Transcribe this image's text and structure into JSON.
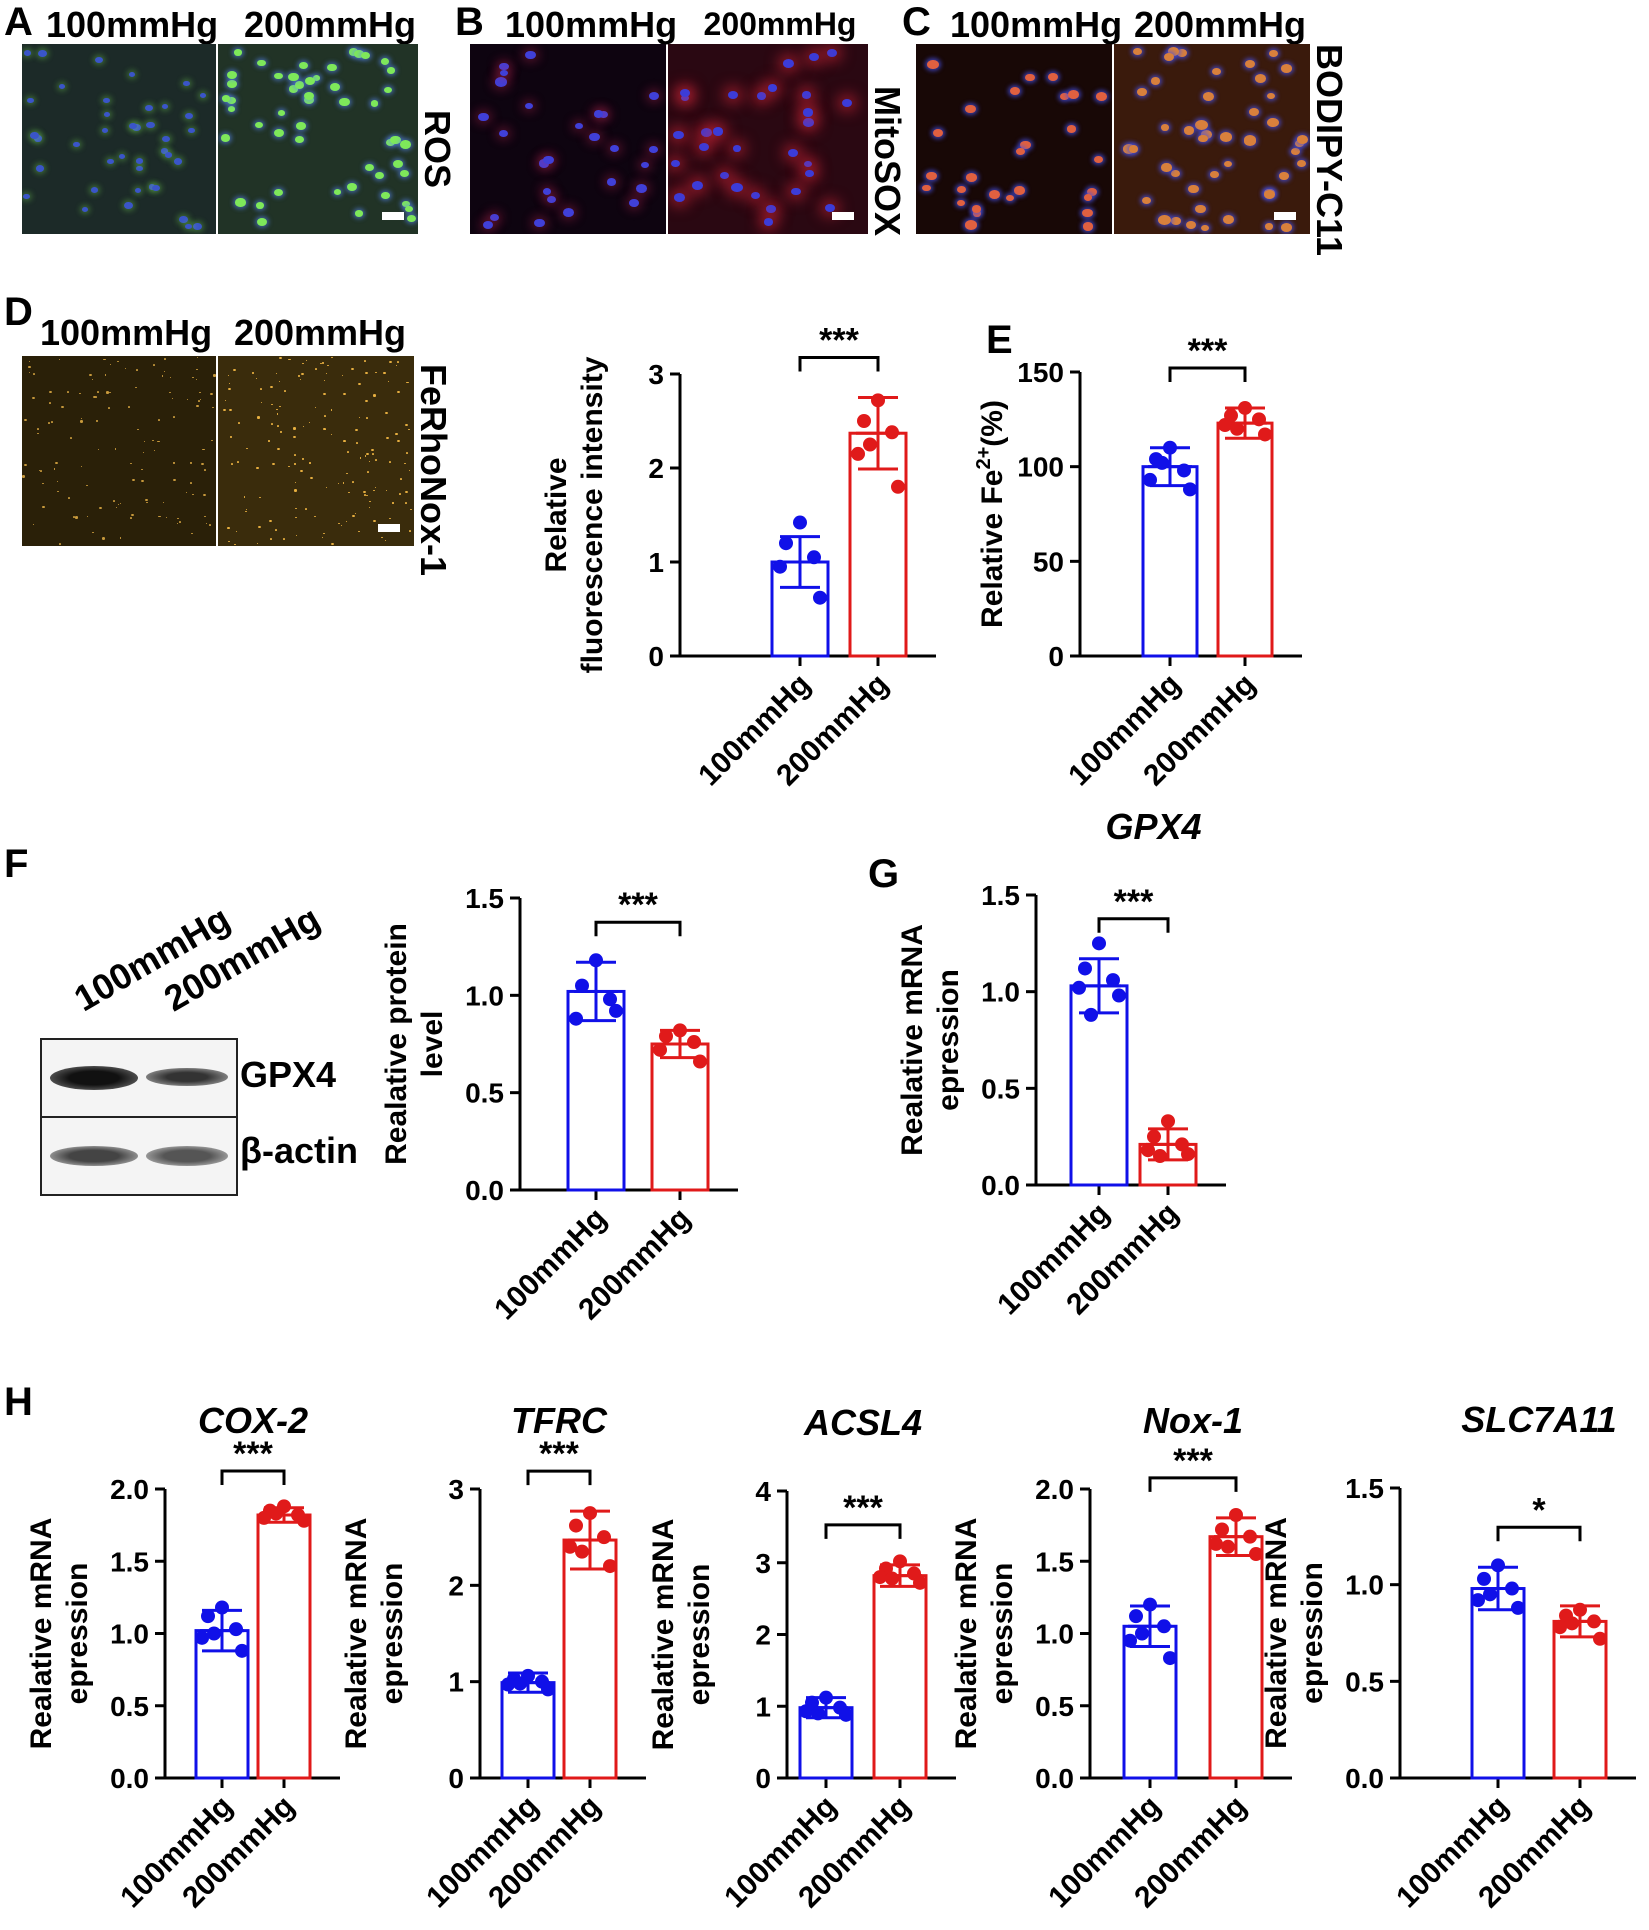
{
  "panels": {
    "A": {
      "letter": "A",
      "left": "100mmHg",
      "right": "200mmHg",
      "stain": "ROS"
    },
    "B": {
      "letter": "B",
      "left": "100mmHg",
      "right": "200mmHg",
      "stain": "MitoSOX"
    },
    "C": {
      "letter": "C",
      "left": "100mmHg",
      "right": "200mmHg",
      "stain": "BODIPY-C11"
    },
    "D": {
      "letter": "D",
      "left": "100mmHg",
      "right": "200mmHg",
      "stain": "FeRhoNox-1"
    },
    "E": {
      "letter": "E"
    },
    "F": {
      "letter": "F",
      "lanes": [
        "100mmHg",
        "200mmHg"
      ],
      "bands": [
        "GPX4",
        "β-actin"
      ]
    },
    "G": {
      "letter": "G"
    },
    "H": {
      "letter": "H"
    }
  },
  "colors": {
    "group1": "#1010e8",
    "group2": "#e01a1a",
    "rosGreen": "#7ee85a",
    "nuclei": "#3a55c8",
    "mito": "#c8203c",
    "bodipy": "#e0703c",
    "ferho": "#e8b040"
  },
  "chart_data": [
    {
      "id": "D_chart",
      "type": "bar",
      "categories": [
        "100mmHg",
        "200mmHg"
      ],
      "title": "",
      "ylabel": "Relative fluorescence intensity",
      "ylim": [
        0,
        3
      ],
      "yticks": [
        0,
        1,
        2,
        3
      ],
      "significance": "***",
      "series": [
        {
          "values": [
            1.0,
            2.37
          ],
          "errors": [
            0.27,
            0.38
          ],
          "points": [
            [
              1.42,
              1.2,
              1.05,
              0.95,
              0.62
            ],
            [
              2.72,
              2.5,
              2.38,
              2.15,
              1.8,
              2.25
            ]
          ]
        }
      ]
    },
    {
      "id": "E_chart",
      "type": "bar",
      "categories": [
        "100mmHg",
        "200mmHg"
      ],
      "title": "",
      "ylabel": "Relative Fe2+(%)",
      "ylim": [
        0,
        150
      ],
      "yticks": [
        0,
        50,
        100,
        150
      ],
      "significance": "***",
      "series": [
        {
          "values": [
            100,
            123
          ],
          "errors": [
            10,
            8
          ],
          "points": [
            [
              110,
              104,
              98,
              93,
              88,
              102
            ],
            [
              131,
              127,
              125,
              122,
              117,
              120
            ]
          ]
        }
      ]
    },
    {
      "id": "F_chart",
      "type": "bar",
      "categories": [
        "100mmHg",
        "200mmHg"
      ],
      "title": "",
      "ylabel": "Realative protein level",
      "ylim": [
        0,
        1.5
      ],
      "yticks": [
        "0.0",
        "0.5",
        "1.0",
        "1.5"
      ],
      "significance": "***",
      "series": [
        {
          "values": [
            1.02,
            0.75
          ],
          "errors": [
            0.15,
            0.07
          ],
          "points": [
            [
              1.18,
              1.05,
              0.98,
              0.88,
              0.92
            ],
            [
              0.82,
              0.79,
              0.76,
              0.72,
              0.66
            ]
          ]
        }
      ]
    },
    {
      "id": "G_chart",
      "type": "bar",
      "categories": [
        "100mmHg",
        "200mmHg"
      ],
      "title": "GPX4",
      "ylabel": "Realative mRNA epression",
      "ylim": [
        0,
        1.5
      ],
      "yticks": [
        "0.0",
        "0.5",
        "1.0",
        "1.5"
      ],
      "significance": "***",
      "series": [
        {
          "values": [
            1.03,
            0.21
          ],
          "errors": [
            0.14,
            0.08
          ],
          "points": [
            [
              1.25,
              1.12,
              1.06,
              1.02,
              0.98,
              0.88
            ],
            [
              0.33,
              0.25,
              0.21,
              0.18,
              0.16,
              0.15
            ]
          ]
        }
      ]
    },
    {
      "id": "H1",
      "type": "bar",
      "categories": [
        "100mmHg",
        "200mmHg"
      ],
      "title": "COX-2",
      "ylabel": "Realative mRNA epression",
      "ylim": [
        0,
        2.0
      ],
      "yticks": [
        "0.0",
        "0.5",
        "1.0",
        "1.5",
        "2.0"
      ],
      "significance": "***",
      "series": [
        {
          "values": [
            1.02,
            1.82
          ],
          "errors": [
            0.14,
            0.05
          ],
          "points": [
            [
              1.18,
              1.12,
              1.03,
              0.97,
              0.88,
              1.0
            ],
            [
              1.88,
              1.85,
              1.82,
              1.8,
              1.78,
              1.83
            ]
          ]
        }
      ]
    },
    {
      "id": "H2",
      "type": "bar",
      "categories": [
        "100mmHg",
        "200mmHg"
      ],
      "title": "TFRC",
      "ylabel": "Realative mRNA epression",
      "ylim": [
        0,
        3
      ],
      "yticks": [
        "0",
        "1",
        "2",
        "3"
      ],
      "significance": "***",
      "series": [
        {
          "values": [
            0.99,
            2.47
          ],
          "errors": [
            0.1,
            0.3
          ],
          "points": [
            [
              1.06,
              1.03,
              1.0,
              0.97,
              0.92,
              0.98
            ],
            [
              2.75,
              2.62,
              2.5,
              2.4,
              2.2,
              2.35
            ]
          ]
        }
      ]
    },
    {
      "id": "H3",
      "type": "bar",
      "categories": [
        "100mmHg",
        "200mmHg"
      ],
      "title": "ACSL4",
      "ylabel": "Realative mRNA epression",
      "ylim": [
        0,
        4
      ],
      "yticks": [
        "0",
        "1",
        "2",
        "3",
        "4"
      ],
      "significance": "***",
      "series": [
        {
          "values": [
            0.98,
            2.82
          ],
          "errors": [
            0.14,
            0.15
          ],
          "points": [
            [
              1.12,
              1.05,
              0.98,
              0.93,
              0.88,
              0.9
            ],
            [
              3.02,
              2.92,
              2.85,
              2.8,
              2.72,
              2.78
            ]
          ]
        }
      ]
    },
    {
      "id": "H4",
      "type": "bar",
      "categories": [
        "100mmHg",
        "200mmHg"
      ],
      "title": "Nox-1",
      "ylabel": "Realative mRNA epression",
      "ylim": [
        0,
        2.0
      ],
      "yticks": [
        "0.0",
        "0.5",
        "1.0",
        "1.5",
        "2.0"
      ],
      "significance": "***",
      "series": [
        {
          "values": [
            1.05,
            1.67
          ],
          "errors": [
            0.14,
            0.13
          ],
          "points": [
            [
              1.2,
              1.12,
              1.05,
              0.95,
              0.83,
              1.0
            ],
            [
              1.82,
              1.72,
              1.67,
              1.62,
              1.55,
              1.6
            ]
          ]
        }
      ]
    },
    {
      "id": "H5",
      "type": "bar",
      "categories": [
        "100mmHg",
        "200mmHg"
      ],
      "title": "SLC7A11",
      "ylabel": "Realative mRNA epression",
      "ylim": [
        0,
        1.5
      ],
      "yticks": [
        "0.0",
        "0.5",
        "1.0",
        "1.5"
      ],
      "significance": "*",
      "series": [
        {
          "values": [
            0.98,
            0.81
          ],
          "errors": [
            0.11,
            0.08
          ],
          "points": [
            [
              1.1,
              1.03,
              0.98,
              0.92,
              0.88,
              0.95
            ],
            [
              0.87,
              0.84,
              0.81,
              0.78,
              0.72,
              0.8
            ]
          ]
        }
      ]
    }
  ]
}
